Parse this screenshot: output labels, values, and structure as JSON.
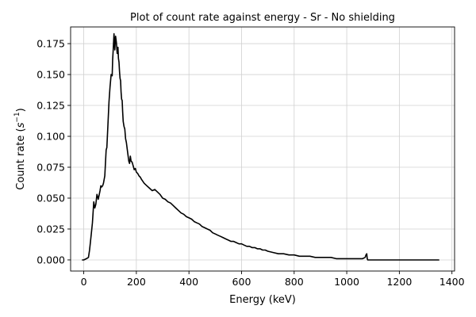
{
  "colors": {
    "line": "#000000",
    "grid": "#d0d0d0",
    "axes": "#000000",
    "background": "#ffffff"
  },
  "chart_data": {
    "type": "line",
    "title": "Plot of count rate against energy - Sr - No shielding",
    "xlabel": "Energy (keV)",
    "ylabel": {
      "base": "Count rate (",
      "sym": "s",
      "sup": "−1",
      "close": ")"
    },
    "xlim": [
      -50,
      1410
    ],
    "ylim": [
      -0.009,
      0.1885
    ],
    "grid": true,
    "xticks": [
      {
        "value": 0,
        "label": "0"
      },
      {
        "value": 200,
        "label": "200"
      },
      {
        "value": 400,
        "label": "400"
      },
      {
        "value": 600,
        "label": "600"
      },
      {
        "value": 800,
        "label": "800"
      },
      {
        "value": 1000,
        "label": "1000"
      },
      {
        "value": 1200,
        "label": "1200"
      },
      {
        "value": 1400,
        "label": "1400"
      }
    ],
    "yticks": [
      {
        "value": 0.0,
        "label": "0.000"
      },
      {
        "value": 0.025,
        "label": "0.025"
      },
      {
        "value": 0.05,
        "label": "0.050"
      },
      {
        "value": 0.075,
        "label": "0.075"
      },
      {
        "value": 0.1,
        "label": "0.100"
      },
      {
        "value": 0.125,
        "label": "0.125"
      },
      {
        "value": 0.15,
        "label": "0.150"
      },
      {
        "value": 0.175,
        "label": "0.175"
      }
    ],
    "series": [
      {
        "name": "Sr - No shielding",
        "x": [
          -5,
          0,
          10,
          18,
          22,
          28,
          33,
          38,
          42,
          46,
          50,
          53,
          55,
          58,
          62,
          65,
          68,
          72,
          75,
          80,
          85,
          88,
          92,
          96,
          100,
          104,
          108,
          110,
          112,
          115,
          118,
          121,
          124,
          127,
          130,
          132,
          134,
          136,
          138,
          140,
          142,
          144,
          146,
          148,
          150,
          153,
          156,
          159,
          162,
          165,
          168,
          171,
          174,
          177,
          180,
          184,
          188,
          192,
          196,
          200,
          205,
          210,
          215,
          220,
          230,
          240,
          250,
          260,
          270,
          280,
          290,
          300,
          310,
          320,
          330,
          340,
          350,
          360,
          370,
          380,
          390,
          400,
          410,
          420,
          430,
          440,
          450,
          460,
          470,
          480,
          490,
          500,
          510,
          520,
          530,
          540,
          550,
          560,
          570,
          580,
          590,
          600,
          610,
          620,
          630,
          640,
          650,
          660,
          670,
          680,
          690,
          700,
          720,
          740,
          760,
          780,
          800,
          820,
          840,
          860,
          880,
          900,
          920,
          940,
          960,
          980,
          1000,
          1020,
          1040,
          1060,
          1070,
          1073,
          1076,
          1078,
          1080,
          1083,
          1090,
          1100,
          1150,
          1200,
          1250,
          1300,
          1350
        ],
        "y": [
          0.0,
          0.0,
          0.001,
          0.002,
          0.008,
          0.02,
          0.03,
          0.047,
          0.042,
          0.045,
          0.053,
          0.051,
          0.049,
          0.052,
          0.056,
          0.06,
          0.059,
          0.06,
          0.062,
          0.068,
          0.089,
          0.091,
          0.11,
          0.128,
          0.14,
          0.15,
          0.149,
          0.162,
          0.17,
          0.183,
          0.17,
          0.181,
          0.176,
          0.167,
          0.172,
          0.163,
          0.16,
          0.152,
          0.147,
          0.145,
          0.136,
          0.13,
          0.129,
          0.12,
          0.112,
          0.108,
          0.106,
          0.098,
          0.095,
          0.09,
          0.085,
          0.08,
          0.078,
          0.084,
          0.08,
          0.079,
          0.076,
          0.073,
          0.074,
          0.071,
          0.07,
          0.068,
          0.067,
          0.065,
          0.062,
          0.06,
          0.058,
          0.056,
          0.057,
          0.055,
          0.053,
          0.05,
          0.049,
          0.047,
          0.046,
          0.044,
          0.042,
          0.04,
          0.038,
          0.037,
          0.035,
          0.034,
          0.033,
          0.031,
          0.03,
          0.029,
          0.027,
          0.026,
          0.025,
          0.024,
          0.022,
          0.021,
          0.02,
          0.019,
          0.018,
          0.017,
          0.016,
          0.015,
          0.015,
          0.014,
          0.013,
          0.013,
          0.012,
          0.011,
          0.011,
          0.01,
          0.01,
          0.009,
          0.009,
          0.008,
          0.008,
          0.007,
          0.006,
          0.005,
          0.005,
          0.004,
          0.004,
          0.003,
          0.003,
          0.003,
          0.002,
          0.002,
          0.002,
          0.002,
          0.001,
          0.001,
          0.001,
          0.001,
          0.001,
          0.001,
          0.002,
          0.004,
          0.005,
          0.001,
          0.0,
          0.0,
          0.0,
          0.0,
          0.0,
          0.0,
          0.0,
          0.0,
          0.0
        ]
      }
    ]
  }
}
